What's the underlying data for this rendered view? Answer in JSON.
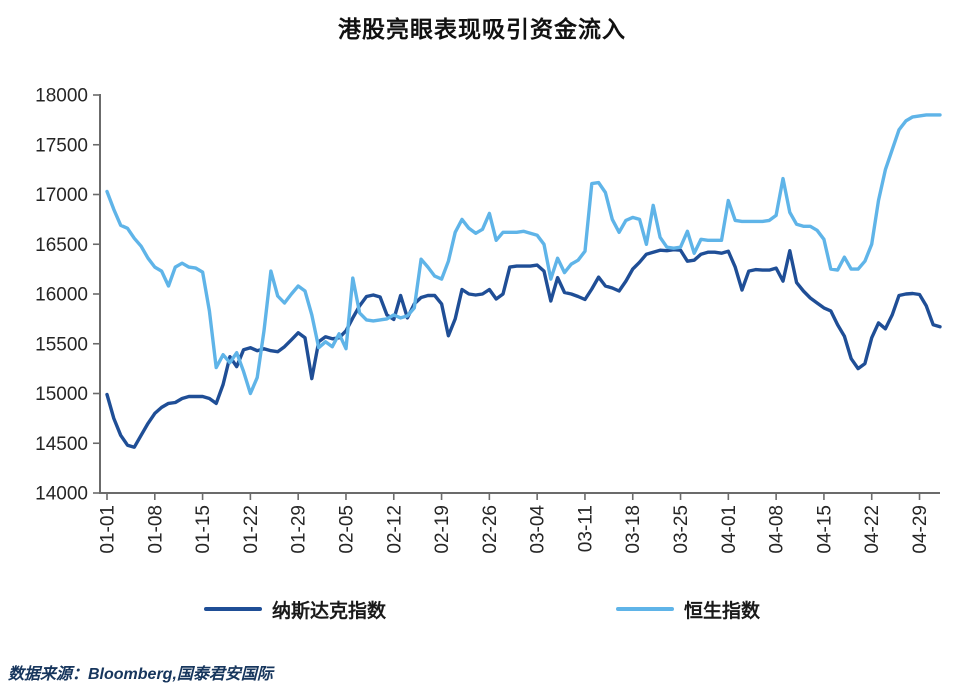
{
  "page": {
    "title": "港股亮眼表现吸引资金流入",
    "source_note": "数据来源：Bloomberg,国泰君安国际"
  },
  "chart_data": {
    "type": "line",
    "title": "港股亮眼表现吸引资金流入",
    "xlabel": "",
    "ylabel": "",
    "ylim": [
      14000,
      18000
    ],
    "y_ticks": [
      14000,
      14500,
      15000,
      15500,
      16000,
      16500,
      17000,
      17500,
      18000
    ],
    "x_tick_labels": [
      "01-01",
      "01-08",
      "01-15",
      "01-22",
      "01-29",
      "02-05",
      "02-12",
      "02-19",
      "02-26",
      "03-04",
      "03-11",
      "03-18",
      "03-25",
      "04-01",
      "04-08",
      "04-15",
      "04-22",
      "04-29"
    ],
    "grid": false,
    "legend_position": "bottom",
    "axis_color": "#6b6b6b",
    "label_color": "#262626",
    "dates": [
      "01-01",
      "01-02",
      "01-03",
      "01-04",
      "01-05",
      "01-06",
      "01-07",
      "01-08",
      "01-09",
      "01-10",
      "01-11",
      "01-12",
      "01-13",
      "01-14",
      "01-15",
      "01-16",
      "01-17",
      "01-18",
      "01-19",
      "01-20",
      "01-21",
      "01-22",
      "01-23",
      "01-24",
      "01-25",
      "01-26",
      "01-27",
      "01-28",
      "01-29",
      "01-30",
      "01-31",
      "02-01",
      "02-02",
      "02-03",
      "02-04",
      "02-05",
      "02-06",
      "02-07",
      "02-08",
      "02-09",
      "02-10",
      "02-11",
      "02-12",
      "02-13",
      "02-14",
      "02-15",
      "02-16",
      "02-17",
      "02-18",
      "02-19",
      "02-20",
      "02-21",
      "02-22",
      "02-23",
      "02-24",
      "02-25",
      "02-26",
      "02-27",
      "02-28",
      "02-29",
      "03-01",
      "03-02",
      "03-03",
      "03-04",
      "03-05",
      "03-06",
      "03-07",
      "03-08",
      "03-09",
      "03-10",
      "03-11",
      "03-12",
      "03-13",
      "03-14",
      "03-15",
      "03-16",
      "03-17",
      "03-18",
      "03-19",
      "03-20",
      "03-21",
      "03-22",
      "03-23",
      "03-24",
      "03-25",
      "03-26",
      "03-27",
      "03-28",
      "03-29",
      "03-30",
      "03-31",
      "04-01",
      "04-02",
      "04-03",
      "04-04",
      "04-05",
      "04-06",
      "04-07",
      "04-08",
      "04-09",
      "04-10",
      "04-11",
      "04-12",
      "04-13",
      "04-14",
      "04-15",
      "04-16",
      "04-17",
      "04-18",
      "04-19",
      "04-20",
      "04-21",
      "04-22",
      "04-23",
      "04-24",
      "04-25",
      "04-26",
      "04-27",
      "04-28",
      "04-29",
      "04-30",
      "05-01",
      "05-02"
    ],
    "series": [
      {
        "name": "纳斯达克指数",
        "color": "#1F4E96",
        "values": [
          14990,
          14750,
          14580,
          14480,
          14460,
          14580,
          14700,
          14800,
          14860,
          14900,
          14910,
          14950,
          14970,
          14970,
          14970,
          14950,
          14900,
          15090,
          15370,
          15270,
          15440,
          15460,
          15430,
          15450,
          15430,
          15420,
          15470,
          15540,
          15610,
          15560,
          15150,
          15520,
          15570,
          15550,
          15560,
          15630,
          15760,
          15880,
          15975,
          15990,
          15970,
          15790,
          15745,
          15985,
          15760,
          15900,
          15965,
          15985,
          15985,
          15900,
          15580,
          15750,
          16045,
          16000,
          15990,
          16000,
          16045,
          15950,
          16000,
          16270,
          16280,
          16280,
          16280,
          16290,
          16230,
          15930,
          16165,
          16015,
          16000,
          15975,
          15945,
          16050,
          16170,
          16080,
          16060,
          16030,
          16130,
          16250,
          16320,
          16400,
          16420,
          16440,
          16435,
          16445,
          16440,
          16330,
          16340,
          16400,
          16420,
          16420,
          16410,
          16430,
          16270,
          16040,
          16230,
          16245,
          16240,
          16240,
          16260,
          16130,
          16435,
          16115,
          16030,
          15960,
          15910,
          15860,
          15830,
          15690,
          15575,
          15350,
          15250,
          15300,
          15560,
          15710,
          15650,
          15790,
          15985,
          16000,
          16005,
          15995,
          15880,
          15690,
          15670
        ]
      },
      {
        "name": "恒生指数",
        "color": "#5FB4E8",
        "values": [
          17030,
          16850,
          16690,
          16660,
          16560,
          16480,
          16360,
          16270,
          16230,
          16080,
          16270,
          16310,
          16270,
          16260,
          16220,
          15830,
          15260,
          15390,
          15310,
          15410,
          15220,
          15000,
          15160,
          15630,
          16230,
          15980,
          15910,
          16000,
          16080,
          16030,
          15790,
          15460,
          15520,
          15470,
          15600,
          15450,
          16160,
          15810,
          15740,
          15730,
          15740,
          15750,
          15790,
          15760,
          15780,
          15860,
          16350,
          16270,
          16180,
          16150,
          16330,
          16620,
          16750,
          16660,
          16610,
          16650,
          16810,
          16540,
          16620,
          16620,
          16620,
          16630,
          16610,
          16590,
          16500,
          16150,
          16360,
          16215,
          16300,
          16340,
          16430,
          17110,
          17120,
          17020,
          16750,
          16620,
          16740,
          16770,
          16750,
          16500,
          16890,
          16570,
          16470,
          16460,
          16470,
          16630,
          16410,
          16550,
          16540,
          16540,
          16540,
          16940,
          16740,
          16730,
          16730,
          16730,
          16730,
          16740,
          16790,
          17160,
          16820,
          16700,
          16680,
          16680,
          16640,
          16550,
          16250,
          16240,
          16370,
          16250,
          16250,
          16330,
          16500,
          16940,
          17250,
          17450,
          17650,
          17740,
          17780,
          17790,
          17800,
          17800,
          17800
        ]
      }
    ]
  }
}
